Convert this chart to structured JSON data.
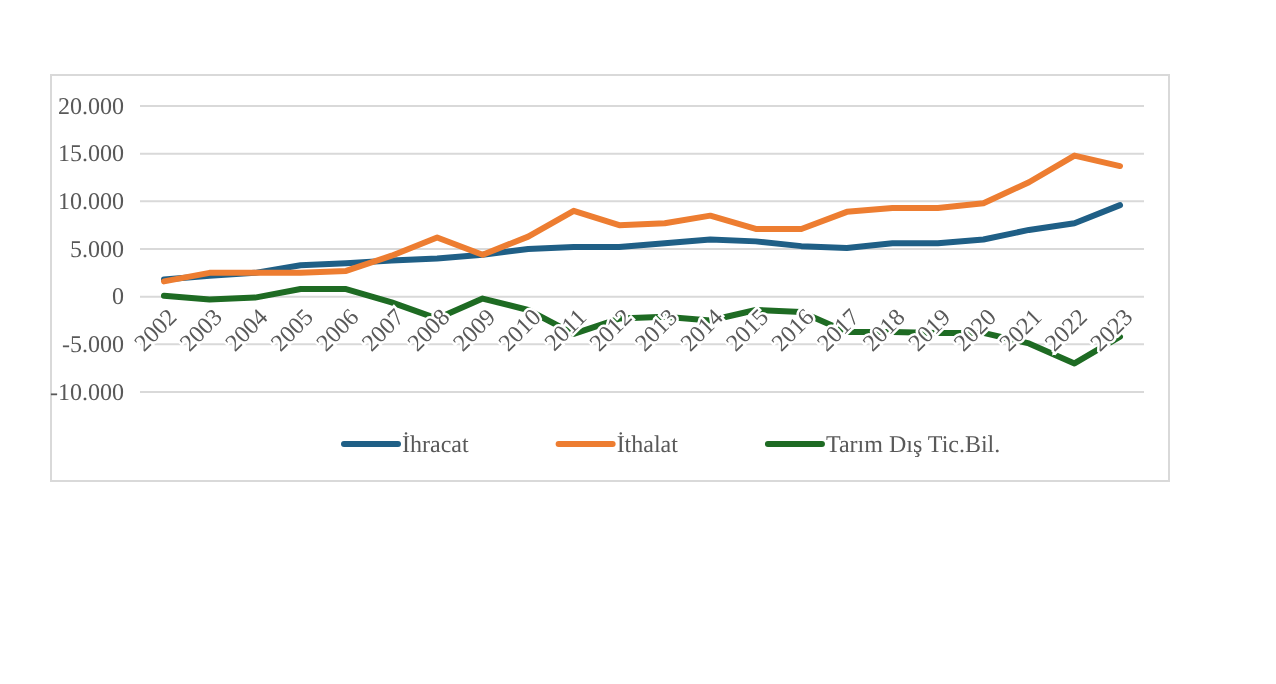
{
  "chart_data": {
    "type": "line",
    "categories": [
      "2002",
      "2003",
      "2004",
      "2005",
      "2006",
      "2007",
      "2008",
      "2009",
      "2010",
      "2011",
      "2012",
      "2013",
      "2014",
      "2015",
      "2016",
      "2017",
      "2018",
      "2019",
      "2020",
      "2021",
      "2022",
      "2023"
    ],
    "series": [
      {
        "name": "İhracat",
        "color": "#1f5f86",
        "values": [
          1800,
          2200,
          2500,
          3300,
          3500,
          3800,
          4000,
          4400,
          5000,
          5200,
          5200,
          5600,
          6000,
          5800,
          5300,
          5100,
          5600,
          5600,
          6000,
          7000,
          7700,
          9600
        ]
      },
      {
        "name": "İthalat",
        "color": "#ed7d31",
        "values": [
          1600,
          2500,
          2500,
          2500,
          2700,
          4300,
          6200,
          4400,
          6300,
          9000,
          7500,
          7700,
          8500,
          7100,
          7100,
          8900,
          9300,
          9300,
          9800,
          12000,
          14800,
          13700
        ]
      },
      {
        "name": "Tarım Dış Tic.Bil.",
        "color": "#1e6b23",
        "values": [
          100,
          -300,
          -100,
          800,
          800,
          -600,
          -2300,
          -200,
          -1400,
          -3900,
          -2300,
          -2100,
          -2500,
          -1400,
          -1600,
          -3700,
          -3700,
          -3800,
          -3800,
          -4900,
          -7000,
          -4200
        ]
      }
    ],
    "ylim": [
      -10000,
      20000
    ],
    "yticks": [
      {
        "value": -10000,
        "label": "-10.000"
      },
      {
        "value": -5000,
        "label": "-5.000"
      },
      {
        "value": 0,
        "label": "0"
      },
      {
        "value": 5000,
        "label": "5.000"
      },
      {
        "value": 10000,
        "label": "10.000"
      },
      {
        "value": 15000,
        "label": "15.000"
      },
      {
        "value": 20000,
        "label": "20.000"
      }
    ],
    "grid": "y",
    "legend": "bottom",
    "marker": "none",
    "line_style": "solid"
  }
}
